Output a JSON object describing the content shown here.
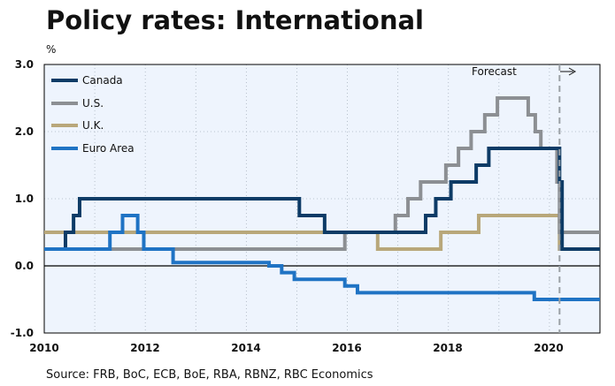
{
  "chart_data": {
    "type": "line",
    "step": true,
    "title": "Policy rates: International",
    "ylabel": "%",
    "xlabel": "",
    "source": "Source: FRB, BoC, ECB, BoE, RBA, RBNZ, RBC Economics",
    "annotation": "Forecast",
    "forecast_start": 2020.2,
    "xlim": [
      2010,
      2021
    ],
    "ylim": [
      -1,
      3
    ],
    "x_ticks": [
      2010,
      2012,
      2014,
      2016,
      2018,
      2020
    ],
    "x_tick_labels": [
      "2010",
      "2012",
      "2014",
      "2016",
      "2018",
      "2020"
    ],
    "y_ticks": [
      3,
      2,
      1,
      0,
      -1
    ],
    "y_tick_labels": [
      "3.0",
      "2.0",
      "1.0",
      "0.0",
      "-1.0"
    ],
    "series": [
      {
        "name": "Canada",
        "color": "#0d3b66",
        "points": [
          [
            2010.0,
            0.25
          ],
          [
            2010.42,
            0.5
          ],
          [
            2010.58,
            0.75
          ],
          [
            2010.7,
            1.0
          ],
          [
            2015.05,
            0.75
          ],
          [
            2015.55,
            0.5
          ],
          [
            2017.55,
            0.75
          ],
          [
            2017.75,
            1.0
          ],
          [
            2018.05,
            1.25
          ],
          [
            2018.55,
            1.5
          ],
          [
            2018.8,
            1.75
          ],
          [
            2020.2,
            1.25
          ],
          [
            2020.25,
            0.25
          ],
          [
            2021.0,
            0.25
          ]
        ]
      },
      {
        "name": "U.S.",
        "color": "#8c8f93",
        "points": [
          [
            2010.0,
            0.25
          ],
          [
            2015.95,
            0.5
          ],
          [
            2016.95,
            0.75
          ],
          [
            2017.2,
            1.0
          ],
          [
            2017.45,
            1.25
          ],
          [
            2017.95,
            1.5
          ],
          [
            2018.2,
            1.75
          ],
          [
            2018.45,
            2.0
          ],
          [
            2018.72,
            2.25
          ],
          [
            2018.97,
            2.5
          ],
          [
            2019.58,
            2.25
          ],
          [
            2019.72,
            2.0
          ],
          [
            2019.83,
            1.75
          ],
          [
            2020.15,
            1.25
          ],
          [
            2020.2,
            0.5
          ],
          [
            2021.0,
            0.5
          ]
        ]
      },
      {
        "name": "U.K.",
        "color": "#b8a77a",
        "points": [
          [
            2010.0,
            0.5
          ],
          [
            2016.6,
            0.25
          ],
          [
            2017.85,
            0.5
          ],
          [
            2018.6,
            0.75
          ],
          [
            2020.2,
            0.25
          ],
          [
            2021.0,
            0.25
          ]
        ]
      },
      {
        "name": "Euro Area",
        "color": "#1f73c4",
        "points": [
          [
            2010.0,
            0.25
          ],
          [
            2011.3,
            0.5
          ],
          [
            2011.55,
            0.75
          ],
          [
            2011.85,
            0.5
          ],
          [
            2011.97,
            0.25
          ],
          [
            2012.55,
            0.05
          ],
          [
            2014.45,
            0.0
          ],
          [
            2014.7,
            -0.1
          ],
          [
            2014.95,
            -0.2
          ],
          [
            2015.95,
            -0.3
          ],
          [
            2016.2,
            -0.4
          ],
          [
            2019.7,
            -0.5
          ],
          [
            2021.0,
            -0.5
          ]
        ]
      }
    ]
  }
}
